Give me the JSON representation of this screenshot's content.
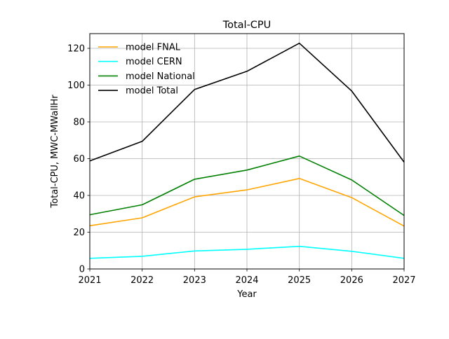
{
  "chart_data": {
    "type": "line",
    "title": "Total-CPU",
    "xlabel": "Year",
    "ylabel": "Total-CPU, MWC-MWallHr",
    "x": [
      2021,
      2022,
      2023,
      2024,
      2025,
      2026,
      2027
    ],
    "xlim": [
      2021,
      2027
    ],
    "ylim": [
      0,
      128
    ],
    "xticks": [
      "2021",
      "2022",
      "2023",
      "2024",
      "2025",
      "2026",
      "2027"
    ],
    "yticks": [
      "0",
      "20",
      "40",
      "60",
      "80",
      "100",
      "120"
    ],
    "grid": true,
    "legend_position": "top-left",
    "series": [
      {
        "name": "model FNAL",
        "color": "#ffa500",
        "values": [
          23.5,
          27.8,
          39.2,
          43.0,
          49.2,
          38.8,
          23.3
        ]
      },
      {
        "name": "model CERN",
        "color": "#00ffff",
        "values": [
          5.8,
          6.9,
          9.8,
          10.7,
          12.3,
          9.6,
          5.8
        ]
      },
      {
        "name": "model National",
        "color": "#008000",
        "values": [
          29.5,
          34.9,
          48.8,
          53.8,
          61.4,
          48.4,
          29.1
        ]
      },
      {
        "name": "model Total",
        "color": "#000000",
        "values": [
          58.8,
          69.4,
          97.6,
          107.5,
          122.8,
          96.8,
          58.1
        ]
      }
    ]
  }
}
